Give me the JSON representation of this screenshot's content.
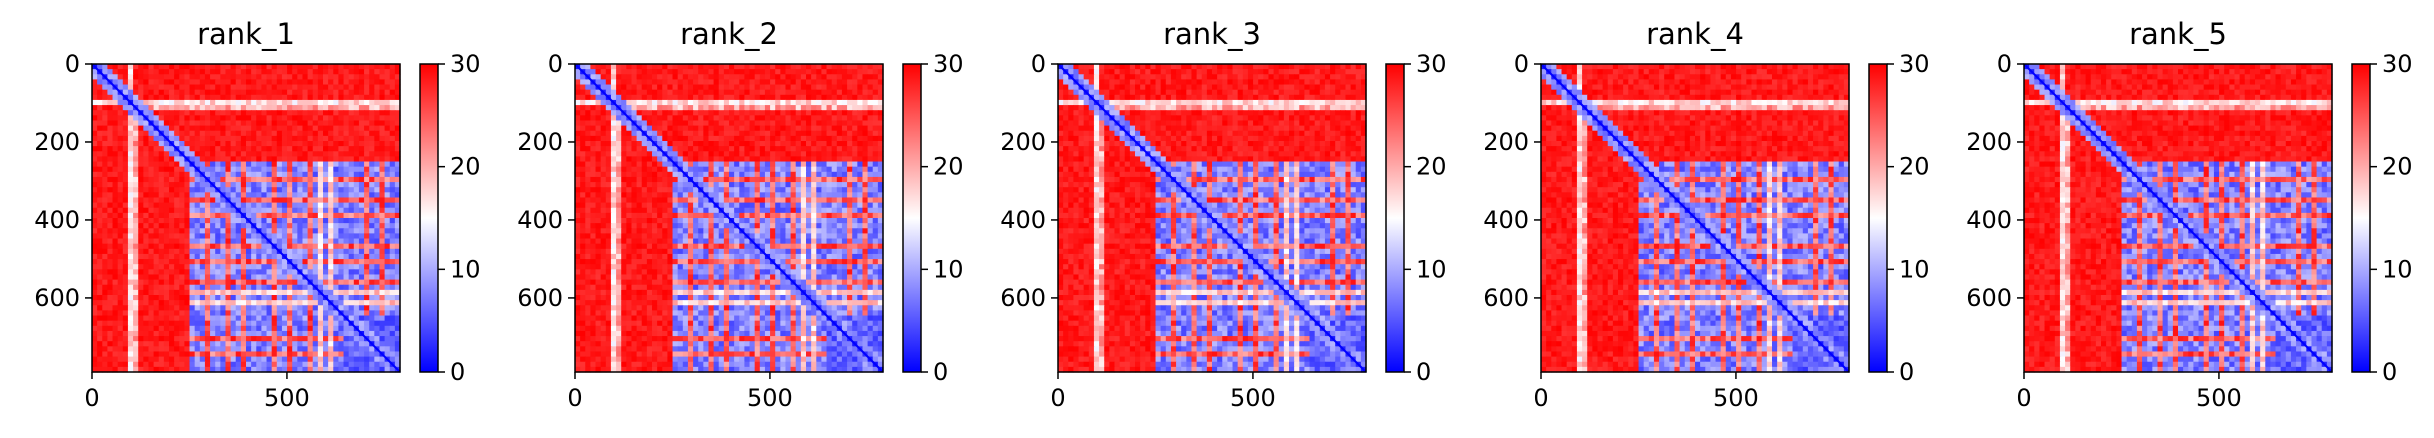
{
  "chart_data": [
    {
      "type": "heatmap",
      "title": "rank_1",
      "x_ticks": [
        "0",
        "500"
      ],
      "y_ticks": [
        "0",
        "200",
        "400",
        "600"
      ],
      "colorbar_ticks": [
        "0",
        "10",
        "20",
        "30"
      ],
      "x_range": [
        0,
        790
      ],
      "y_range": [
        0,
        790
      ],
      "color_range": [
        0,
        30
      ],
      "colormap": [
        "#0000ff",
        "#ffffff",
        "#ff0000"
      ]
    },
    {
      "type": "heatmap",
      "title": "rank_2",
      "x_ticks": [
        "0",
        "500"
      ],
      "y_ticks": [
        "0",
        "200",
        "400",
        "600"
      ],
      "colorbar_ticks": [
        "0",
        "10",
        "20",
        "30"
      ],
      "x_range": [
        0,
        790
      ],
      "y_range": [
        0,
        790
      ],
      "color_range": [
        0,
        30
      ],
      "colormap": [
        "#0000ff",
        "#ffffff",
        "#ff0000"
      ]
    },
    {
      "type": "heatmap",
      "title": "rank_3",
      "x_ticks": [
        "0",
        "500"
      ],
      "y_ticks": [
        "0",
        "200",
        "400",
        "600"
      ],
      "colorbar_ticks": [
        "0",
        "10",
        "20",
        "30"
      ],
      "x_range": [
        0,
        790
      ],
      "y_range": [
        0,
        790
      ],
      "color_range": [
        0,
        30
      ],
      "colormap": [
        "#0000ff",
        "#ffffff",
        "#ff0000"
      ]
    },
    {
      "type": "heatmap",
      "title": "rank_4",
      "x_ticks": [
        "0",
        "500"
      ],
      "y_ticks": [
        "0",
        "200",
        "400",
        "600"
      ],
      "colorbar_ticks": [
        "0",
        "10",
        "20",
        "30"
      ],
      "x_range": [
        0,
        790
      ],
      "y_range": [
        0,
        790
      ],
      "color_range": [
        0,
        30
      ],
      "colormap": [
        "#0000ff",
        "#ffffff",
        "#ff0000"
      ]
    },
    {
      "type": "heatmap",
      "title": "rank_5",
      "x_ticks": [
        "0",
        "500"
      ],
      "y_ticks": [
        "0",
        "200",
        "400",
        "600"
      ],
      "colorbar_ticks": [
        "0",
        "10",
        "20",
        "30"
      ],
      "x_range": [
        0,
        790
      ],
      "y_range": [
        0,
        790
      ],
      "color_range": [
        0,
        30
      ],
      "colormap": [
        "#0000ff",
        "#ffffff",
        "#ff0000"
      ]
    }
  ]
}
